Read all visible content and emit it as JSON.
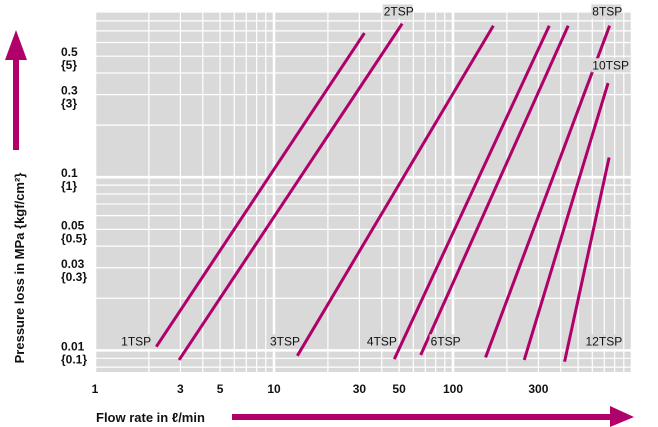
{
  "chart_data": {
    "type": "line",
    "x_scale": "log",
    "y_scale": "log",
    "xlim": [
      1,
      1000
    ],
    "ylim": [
      0.0075,
      0.9
    ],
    "grid": true,
    "line_color": "#b0006a",
    "plot_background": "#d9d9d9",
    "xlabel": "Flow rate in ℓ/min",
    "ylabel": "Pressure loss in MPa {kgf/cm²}",
    "x_ticks": [
      {
        "value": 1,
        "label": "1"
      },
      {
        "value": 3,
        "label": "3"
      },
      {
        "value": 5,
        "label": "5"
      },
      {
        "value": 10,
        "label": "10"
      },
      {
        "value": 30,
        "label": "30"
      },
      {
        "value": 50,
        "label": "50"
      },
      {
        "value": 100,
        "label": "100"
      },
      {
        "value": 300,
        "label": "300"
      }
    ],
    "y_ticks": [
      {
        "value": 0.5,
        "label": "0.5",
        "sub": "{5}"
      },
      {
        "value": 0.3,
        "label": "0.3",
        "sub": "{3}"
      },
      {
        "value": 0.1,
        "label": "0.1",
        "sub": "{1}"
      },
      {
        "value": 0.05,
        "label": "0.05",
        "sub": "{0.5}"
      },
      {
        "value": 0.03,
        "label": "0.03",
        "sub": "{0.3}"
      },
      {
        "value": 0.01,
        "label": "0.01",
        "sub": "{0.1}"
      }
    ],
    "series": [
      {
        "name": "1TSP",
        "x": [
          2.2,
          32
        ],
        "y": [
          0.0105,
          0.68
        ]
      },
      {
        "name": "2TSP",
        "x": [
          2.95,
          52
        ],
        "y": [
          0.0088,
          0.77
        ]
      },
      {
        "name": "3TSP",
        "x": [
          13.5,
          168
        ],
        "y": [
          0.0093,
          0.75
        ]
      },
      {
        "name": "4TSP",
        "x": [
          47,
          345
        ],
        "y": [
          0.0089,
          0.75
        ]
      },
      {
        "name": "6TSP",
        "x": [
          66,
          440
        ],
        "y": [
          0.0094,
          0.75
        ]
      },
      {
        "name": "8TSP",
        "x": [
          152,
          750
        ],
        "y": [
          0.0091,
          0.75
        ]
      },
      {
        "name": "10TSP",
        "x": [
          250,
          735
        ],
        "y": [
          0.0088,
          0.35
        ]
      },
      {
        "name": "12TSP",
        "x": [
          420,
          745
        ],
        "y": [
          0.0086,
          0.13
        ]
      }
    ],
    "series_labels": [
      {
        "name": "1TSP",
        "x": 1.4,
        "y": 0.0107
      },
      {
        "name": "2TSP",
        "x": 41,
        "y": 0.86
      },
      {
        "name": "3TSP",
        "x": 9.5,
        "y": 0.0107
      },
      {
        "name": "4TSP",
        "x": 33,
        "y": 0.0107
      },
      {
        "name": "6TSP",
        "x": 75,
        "y": 0.0107
      },
      {
        "name": "8TSP",
        "x": 600,
        "y": 0.86
      },
      {
        "name": "10TSP",
        "x": 600,
        "y": 0.42
      },
      {
        "name": "12TSP",
        "x": 550,
        "y": 0.0107
      }
    ]
  }
}
